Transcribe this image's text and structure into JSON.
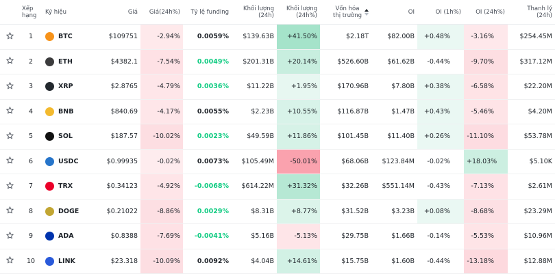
{
  "table": {
    "headers": [
      "Xếp hạng",
      "Ký hiệu",
      "Giá",
      "Giá(24h%)",
      "Tỷ lệ funding",
      "Khối lượng (24h)",
      "Khối lượng (24h%)",
      "Vốn hóa thị trường",
      "OI",
      "OI (1h%)",
      "OI (24h%)",
      "Thanh lý (24h)"
    ],
    "icon_colors": [
      "#f7931a",
      "#3c3c3d",
      "#23292f",
      "#f3ba2f",
      "#111111",
      "#2775ca",
      "#eb0029",
      "#c2a633",
      "#0033ad",
      "#2a5ada"
    ],
    "rows": [
      [
        "1",
        "BTC",
        "$109751",
        "-2.94%",
        "0.0059%",
        "$139.63B",
        "+41.50%",
        "$2.18T",
        "$82.00B",
        "+0.48%",
        "-3.16%",
        "$254.45M"
      ],
      [
        "2",
        "ETH",
        "$4382.1",
        "-7.54%",
        "0.0049%",
        "$201.31B",
        "+20.14%",
        "$526.60B",
        "$61.62B",
        "-0.44%",
        "-9.70%",
        "$317.12M"
      ],
      [
        "3",
        "XRP",
        "$2.8765",
        "-4.79%",
        "0.0036%",
        "$11.22B",
        "+1.95%",
        "$170.96B",
        "$7.80B",
        "+0.38%",
        "-6.58%",
        "$22.20M"
      ],
      [
        "4",
        "BNB",
        "$840.69",
        "-4.17%",
        "0.0055%",
        "$2.23B",
        "+10.55%",
        "$116.87B",
        "$1.47B",
        "+0.43%",
        "-5.46%",
        "$4.20M"
      ],
      [
        "5",
        "SOL",
        "$187.57",
        "-10.02%",
        "0.0023%",
        "$49.59B",
        "+11.86%",
        "$101.45B",
        "$11.40B",
        "+0.26%",
        "-11.10%",
        "$53.78M"
      ],
      [
        "6",
        "USDC",
        "$0.99935",
        "-0.02%",
        "0.0073%",
        "$105.49M",
        "-50.01%",
        "$68.06B",
        "$123.84M",
        "-0.02%",
        "+18.03%",
        "$5.10K"
      ],
      [
        "7",
        "TRX",
        "$0.34123",
        "-4.92%",
        "-0.0068%",
        "$614.22M",
        "+31.32%",
        "$32.26B",
        "$551.14M",
        "-0.43%",
        "-7.13%",
        "$2.61M"
      ],
      [
        "8",
        "DOGE",
        "$0.21022",
        "-8.86%",
        "0.0029%",
        "$8.31B",
        "+8.77%",
        "$31.52B",
        "$3.23B",
        "+0.08%",
        "-8.68%",
        "$23.29M"
      ],
      [
        "9",
        "ADA",
        "$0.8388",
        "-7.69%",
        "-0.0041%",
        "$5.16B",
        "-5.13%",
        "$29.75B",
        "$1.66B",
        "-0.14%",
        "-5.53%",
        "$10.96M"
      ],
      [
        "10",
        "LINK",
        "$23.318",
        "-10.09%",
        "0.0092%",
        "$4.04B",
        "+14.61%",
        "$15.75B",
        "$1.60B",
        "-0.44%",
        "-13.18%",
        "$12.88M"
      ]
    ]
  }
}
